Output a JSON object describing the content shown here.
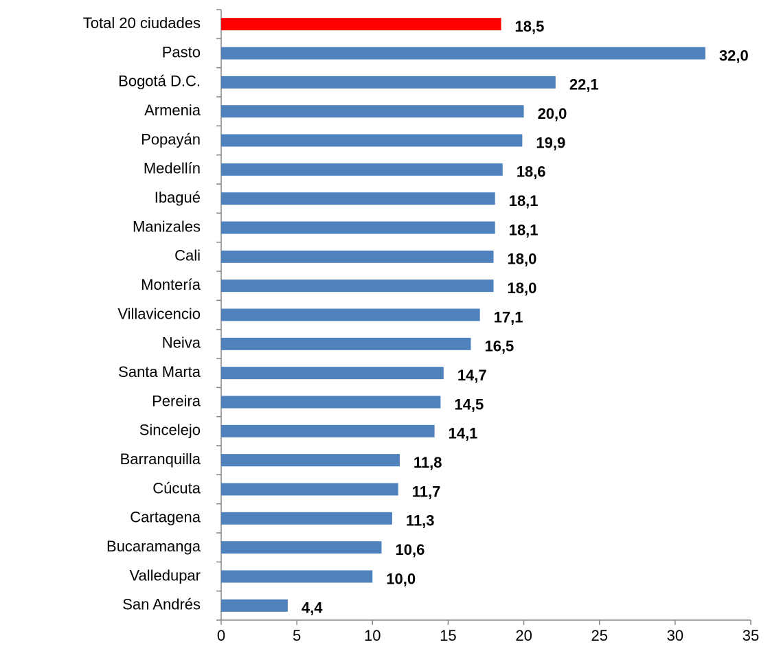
{
  "chart_data": {
    "type": "bar",
    "orientation": "horizontal",
    "categories": [
      "Total 20 ciudades",
      "Pasto",
      "Bogotá D.C.",
      "Armenia",
      "Popayán",
      "Medellín",
      "Ibagué",
      "Manizales",
      "Cali",
      "Montería",
      "Villavicencio",
      "Neiva",
      "Santa Marta",
      "Pereira",
      "Sincelejo",
      "Barranquilla",
      "Cúcuta",
      "Cartagena",
      "Bucaramanga",
      "Valledupar",
      "San Andrés"
    ],
    "values": [
      18.5,
      32.0,
      22.1,
      20.0,
      19.9,
      18.6,
      18.1,
      18.1,
      18.0,
      18.0,
      17.1,
      16.5,
      14.7,
      14.5,
      14.1,
      11.8,
      11.7,
      11.3,
      10.6,
      10.0,
      4.4
    ],
    "value_labels": [
      "18,5",
      "32,0",
      "22,1",
      "20,0",
      "19,9",
      "18,6",
      "18,1",
      "18,1",
      "18,0",
      "18,0",
      "17,1",
      "16,5",
      "14,7",
      "14,5",
      "14,1",
      "11,8",
      "11,7",
      "11,3",
      "10,6",
      "10,0",
      "4,4"
    ],
    "colors": [
      "#ff0000",
      "#4f81bd",
      "#4f81bd",
      "#4f81bd",
      "#4f81bd",
      "#4f81bd",
      "#4f81bd",
      "#4f81bd",
      "#4f81bd",
      "#4f81bd",
      "#4f81bd",
      "#4f81bd",
      "#4f81bd",
      "#4f81bd",
      "#4f81bd",
      "#4f81bd",
      "#4f81bd",
      "#4f81bd",
      "#4f81bd",
      "#4f81bd",
      "#4f81bd"
    ],
    "xlim": [
      0,
      35
    ],
    "xticks": [
      0,
      5,
      10,
      15,
      20,
      25,
      30,
      35
    ],
    "grid": false
  }
}
